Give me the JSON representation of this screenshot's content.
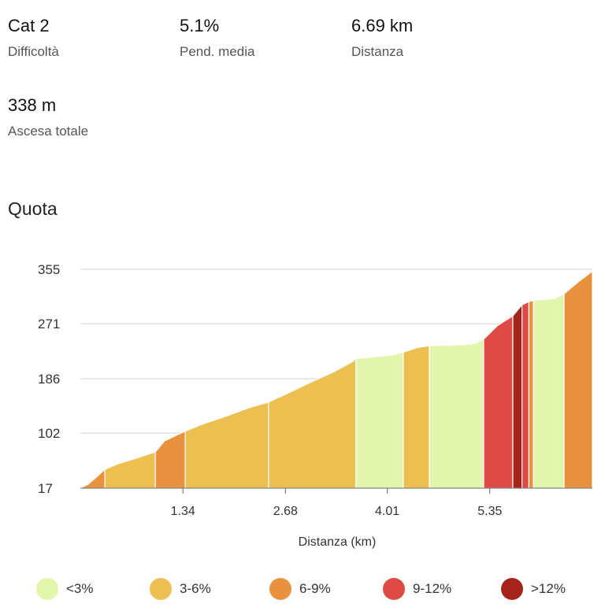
{
  "stats": [
    {
      "value": "Cat 2",
      "label": "Difficoltà"
    },
    {
      "value": "5.1%",
      "label": "Pend. media"
    },
    {
      "value": "6.69 km",
      "label": "Distanza"
    },
    {
      "value": "338 m",
      "label": "Ascesa totale"
    }
  ],
  "section_title": "Quota",
  "colors": {
    "c0": "#e3f5ad",
    "c1": "#ebc050",
    "c2": "#e9913d",
    "c3": "#df4a45",
    "c4": "#a4231b",
    "grid": "#d0d0d0",
    "axis": "#666666"
  },
  "legend": [
    {
      "label": "<3%",
      "color": "#e3f5ad"
    },
    {
      "label": "3-6%",
      "color": "#ebc050"
    },
    {
      "label": "6-9%",
      "color": "#e9913d"
    },
    {
      "label": "9-12%",
      "color": "#df4a45"
    },
    {
      "label": ">12%",
      "color": "#a4231b"
    }
  ],
  "chart_data": {
    "type": "area",
    "xlabel": "Distanza (km)",
    "ylabel": "",
    "xlim": [
      0,
      6.69
    ],
    "ylim": [
      17,
      355
    ],
    "x_ticks": [
      1.34,
      2.68,
      4.01,
      5.35
    ],
    "x_tick_labels": [
      "1.34",
      "2.68",
      "4.01",
      "5.35"
    ],
    "y_ticks": [
      17,
      102,
      186,
      271,
      355
    ],
    "y_tick_labels": [
      "17",
      "102",
      "186",
      "271",
      "355"
    ],
    "grid": "horizontal",
    "legend_position": "bottom",
    "profile": [
      [
        0.0,
        17
      ],
      [
        0.1,
        23
      ],
      [
        0.2,
        33
      ],
      [
        0.32,
        46
      ],
      [
        0.5,
        55
      ],
      [
        0.7,
        62
      ],
      [
        0.98,
        73
      ],
      [
        1.1,
        90
      ],
      [
        1.37,
        105
      ],
      [
        1.6,
        116
      ],
      [
        1.9,
        128
      ],
      [
        2.2,
        141
      ],
      [
        2.46,
        150
      ],
      [
        2.7,
        163
      ],
      [
        3.0,
        180
      ],
      [
        3.3,
        196
      ],
      [
        3.55,
        212
      ],
      [
        3.6,
        217
      ],
      [
        3.85,
        220
      ],
      [
        4.1,
        223
      ],
      [
        4.22,
        227
      ],
      [
        4.4,
        234
      ],
      [
        4.56,
        237
      ],
      [
        4.9,
        238
      ],
      [
        5.15,
        240
      ],
      [
        5.27,
        247
      ],
      [
        5.45,
        268
      ],
      [
        5.65,
        283
      ],
      [
        5.77,
        300
      ],
      [
        5.86,
        305
      ],
      [
        5.92,
        307
      ],
      [
        6.2,
        310
      ],
      [
        6.32,
        317
      ],
      [
        6.5,
        335
      ],
      [
        6.69,
        352
      ]
    ],
    "segments": [
      {
        "from": 0.0,
        "to": 0.32,
        "gradient": "6-9%"
      },
      {
        "from": 0.32,
        "to": 0.98,
        "gradient": "3-6%"
      },
      {
        "from": 0.98,
        "to": 1.37,
        "gradient": "6-9%"
      },
      {
        "from": 1.37,
        "to": 2.46,
        "gradient": "3-6%"
      },
      {
        "from": 2.46,
        "to": 3.6,
        "gradient": "3-6%"
      },
      {
        "from": 3.6,
        "to": 4.22,
        "gradient": "<3%"
      },
      {
        "from": 4.22,
        "to": 4.56,
        "gradient": "3-6%"
      },
      {
        "from": 4.56,
        "to": 5.27,
        "gradient": "<3%"
      },
      {
        "from": 5.27,
        "to": 5.65,
        "gradient": "9-12%"
      },
      {
        "from": 5.65,
        "to": 5.77,
        "gradient": ">12%"
      },
      {
        "from": 5.77,
        "to": 5.86,
        "gradient": "9-12%"
      },
      {
        "from": 5.86,
        "to": 5.92,
        "gradient": "6-9%"
      },
      {
        "from": 5.92,
        "to": 6.32,
        "gradient": "<3%"
      },
      {
        "from": 6.32,
        "to": 6.69,
        "gradient": "6-9%"
      }
    ]
  }
}
